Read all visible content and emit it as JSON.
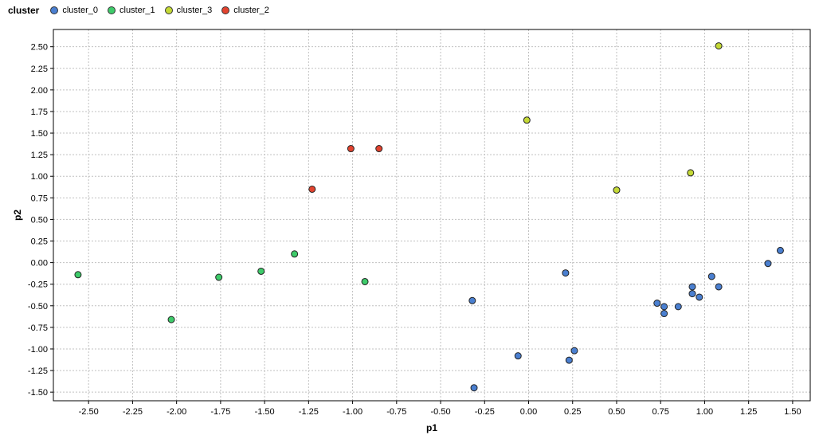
{
  "legend": {
    "title": "cluster",
    "items": [
      {
        "label": "cluster_0",
        "color": "#4a7fd0"
      },
      {
        "label": "cluster_1",
        "color": "#3ecb6a"
      },
      {
        "label": "cluster_3",
        "color": "#c4d936"
      },
      {
        "label": "cluster_2",
        "color": "#e2432f"
      }
    ]
  },
  "chart_data": {
    "type": "scatter",
    "xlabel": "p1",
    "ylabel": "p2",
    "xlim": [
      -2.7,
      1.6
    ],
    "ylim": [
      -1.6,
      2.7
    ],
    "grid": true,
    "legend_position": "top-left",
    "x_ticks": [
      -2.5,
      -2.25,
      -2.0,
      -1.75,
      -1.5,
      -1.25,
      -1.0,
      -0.75,
      -0.5,
      -0.25,
      0.0,
      0.25,
      0.5,
      0.75,
      1.0,
      1.25,
      1.5
    ],
    "x_tick_labels": [
      "-2.50",
      "-2.25",
      "-2.00",
      "-1.75",
      "-1.50",
      "-1.25",
      "-1.00",
      "-0.75",
      "-0.50",
      "-0.25",
      "0.00",
      "0.25",
      "0.50",
      "0.75",
      "1.00",
      "1.25",
      "1.50"
    ],
    "y_ticks": [
      -1.5,
      -1.25,
      -1.0,
      -0.75,
      -0.5,
      -0.25,
      0.0,
      0.25,
      0.5,
      0.75,
      1.0,
      1.25,
      1.5,
      1.75,
      2.0,
      2.25,
      2.5
    ],
    "y_tick_labels": [
      "-1.50",
      "-1.25",
      "-1.00",
      "-0.75",
      "-0.50",
      "-0.25",
      "0.00",
      "0.25",
      "0.50",
      "0.75",
      "1.00",
      "1.25",
      "1.50",
      "1.75",
      "2.00",
      "2.25",
      "2.50"
    ],
    "series": [
      {
        "name": "cluster_0",
        "color": "#4a7fd0",
        "points": [
          [
            -0.32,
            -0.44
          ],
          [
            -0.31,
            -1.45
          ],
          [
            -0.06,
            -1.08
          ],
          [
            0.21,
            -0.12
          ],
          [
            0.23,
            -1.13
          ],
          [
            0.26,
            -1.02
          ],
          [
            0.73,
            -0.47
          ],
          [
            0.77,
            -0.51
          ],
          [
            0.77,
            -0.59
          ],
          [
            0.85,
            -0.51
          ],
          [
            0.93,
            -0.28
          ],
          [
            0.93,
            -0.36
          ],
          [
            0.97,
            -0.4
          ],
          [
            1.04,
            -0.16
          ],
          [
            1.08,
            -0.28
          ],
          [
            1.36,
            -0.01
          ],
          [
            1.43,
            0.14
          ]
        ]
      },
      {
        "name": "cluster_1",
        "color": "#3ecb6a",
        "points": [
          [
            -2.56,
            -0.14
          ],
          [
            -2.03,
            -0.66
          ],
          [
            -1.76,
            -0.17
          ],
          [
            -1.52,
            -0.1
          ],
          [
            -1.33,
            0.1
          ],
          [
            -0.93,
            -0.22
          ]
        ]
      },
      {
        "name": "cluster_3",
        "color": "#c4d936",
        "points": [
          [
            -0.01,
            1.65
          ],
          [
            0.5,
            0.84
          ],
          [
            0.92,
            1.04
          ],
          [
            1.08,
            2.51
          ]
        ]
      },
      {
        "name": "cluster_2",
        "color": "#e2432f",
        "points": [
          [
            -1.23,
            0.85
          ],
          [
            -1.01,
            1.32
          ],
          [
            -0.85,
            1.32
          ]
        ]
      }
    ]
  }
}
